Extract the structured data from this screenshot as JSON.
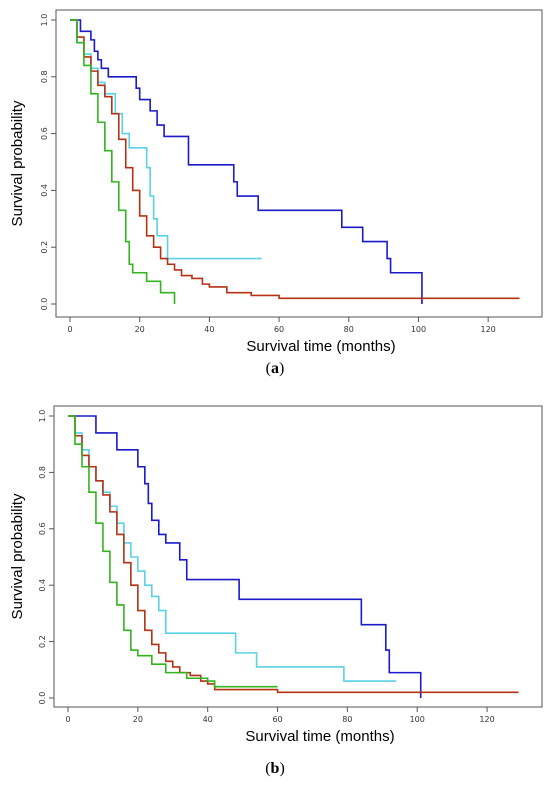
{
  "chart_data": [
    {
      "type": "line",
      "panel_label": "(a)",
      "panel_letter": "a",
      "xlabel": "Survival time (months)",
      "ylabel": "Survival probability",
      "xlim": [
        0,
        130
      ],
      "ylim": [
        0,
        1.0
      ],
      "xticks": [
        0,
        20,
        40,
        60,
        80,
        100,
        120
      ],
      "yticks": [
        0.0,
        0.2,
        0.4,
        0.6,
        0.8,
        1.0
      ],
      "series": [
        {
          "color": "#1a1ac8",
          "x": [
            0,
            3,
            6,
            7,
            8,
            9,
            10,
            11,
            14,
            19,
            20,
            23,
            25,
            27,
            34,
            47,
            48,
            50,
            54,
            78,
            80,
            84,
            91,
            92,
            101
          ],
          "y": [
            1.0,
            0.96,
            0.93,
            0.89,
            0.86,
            0.83,
            0.83,
            0.8,
            0.8,
            0.76,
            0.72,
            0.68,
            0.63,
            0.59,
            0.49,
            0.43,
            0.38,
            0.38,
            0.33,
            0.27,
            0.27,
            0.22,
            0.16,
            0.11,
            0.0
          ]
        },
        {
          "color": "#5ad2e6",
          "x": [
            0,
            2,
            4,
            6,
            8,
            10,
            13,
            15,
            17,
            20,
            22,
            23,
            24,
            25,
            28,
            55
          ],
          "y": [
            1.0,
            0.92,
            0.88,
            0.83,
            0.78,
            0.74,
            0.67,
            0.6,
            0.55,
            0.55,
            0.48,
            0.38,
            0.3,
            0.24,
            0.16,
            0.16
          ]
        },
        {
          "color": "#b43214",
          "x": [
            0,
            2,
            4,
            6,
            8,
            10,
            12,
            14,
            16,
            18,
            20,
            22,
            24,
            26,
            28,
            30,
            32,
            35,
            38,
            40,
            45,
            52,
            60,
            80,
            100,
            129
          ],
          "y": [
            1.0,
            0.94,
            0.87,
            0.82,
            0.77,
            0.73,
            0.67,
            0.58,
            0.48,
            0.4,
            0.31,
            0.24,
            0.2,
            0.16,
            0.14,
            0.12,
            0.1,
            0.09,
            0.07,
            0.06,
            0.04,
            0.03,
            0.02,
            0.02,
            0.02,
            0.02
          ]
        },
        {
          "color": "#32b41e",
          "x": [
            0,
            2,
            4,
            6,
            8,
            10,
            12,
            14,
            16,
            17,
            18,
            22,
            26,
            30
          ],
          "y": [
            1.0,
            0.92,
            0.84,
            0.74,
            0.64,
            0.54,
            0.43,
            0.33,
            0.22,
            0.14,
            0.11,
            0.08,
            0.04,
            0.0
          ]
        }
      ]
    },
    {
      "type": "line",
      "panel_label": "(b)",
      "panel_letter": "b",
      "xlabel": "Survival time (months)",
      "ylabel": "Survival probability",
      "xlim": [
        0,
        130
      ],
      "ylim": [
        0,
        1.0
      ],
      "xticks": [
        0,
        20,
        40,
        60,
        80,
        100,
        120
      ],
      "yticks": [
        0.0,
        0.2,
        0.4,
        0.6,
        0.8,
        1.0
      ],
      "series": [
        {
          "color": "#1a1ac8",
          "x": [
            0,
            8,
            14,
            20,
            22,
            23,
            24,
            26,
            28,
            32,
            34,
            36,
            49,
            84,
            91,
            92,
            101
          ],
          "y": [
            1.0,
            0.94,
            0.88,
            0.82,
            0.76,
            0.69,
            0.63,
            0.58,
            0.55,
            0.49,
            0.42,
            0.42,
            0.35,
            0.26,
            0.17,
            0.09,
            0.0
          ]
        },
        {
          "color": "#5ad2e6",
          "x": [
            0,
            2,
            4,
            6,
            8,
            10,
            12,
            14,
            16,
            18,
            20,
            22,
            24,
            26,
            28,
            30,
            48,
            54,
            79,
            94
          ],
          "y": [
            1.0,
            0.94,
            0.88,
            0.82,
            0.77,
            0.73,
            0.68,
            0.62,
            0.55,
            0.5,
            0.45,
            0.4,
            0.36,
            0.31,
            0.23,
            0.23,
            0.16,
            0.11,
            0.06,
            0.06
          ]
        },
        {
          "color": "#b43214",
          "x": [
            0,
            2,
            4,
            6,
            8,
            10,
            12,
            14,
            16,
            18,
            20,
            22,
            24,
            26,
            28,
            30,
            32,
            35,
            38,
            40,
            42,
            60,
            129
          ],
          "y": [
            1.0,
            0.93,
            0.86,
            0.82,
            0.77,
            0.72,
            0.66,
            0.58,
            0.48,
            0.4,
            0.31,
            0.24,
            0.19,
            0.16,
            0.13,
            0.11,
            0.09,
            0.08,
            0.06,
            0.05,
            0.03,
            0.02,
            0.02
          ]
        },
        {
          "color": "#32b41e",
          "x": [
            0,
            2,
            4,
            6,
            8,
            10,
            12,
            14,
            16,
            18,
            20,
            24,
            28,
            34,
            40,
            42,
            60
          ],
          "y": [
            1.0,
            0.9,
            0.82,
            0.73,
            0.62,
            0.52,
            0.41,
            0.33,
            0.24,
            0.17,
            0.15,
            0.12,
            0.09,
            0.07,
            0.06,
            0.04,
            0.04
          ]
        }
      ]
    }
  ]
}
